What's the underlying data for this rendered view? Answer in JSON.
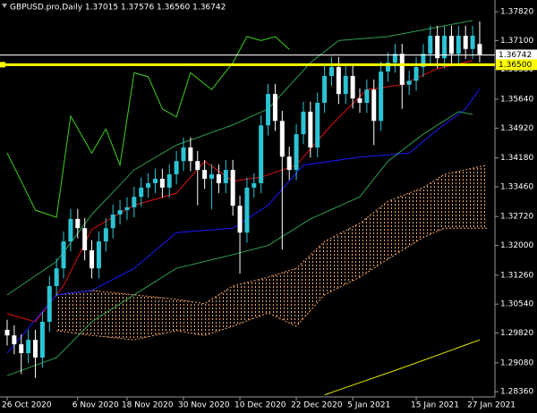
{
  "chart_data": {
    "type": "candlestick",
    "title": "GBPUSD.pro,Daily  1.37015 1.37576 1.36560 1.36742",
    "up_color": "#2bc4d4",
    "down_color": "#ffffff",
    "grid": false,
    "categories": [
      "26 Oct 2020",
      null,
      null,
      null,
      null,
      null,
      null,
      null,
      null,
      null,
      "6 Nov 2020",
      null,
      null,
      null,
      null,
      null,
      null,
      "18 Nov 2020",
      null,
      null,
      null,
      null,
      null,
      null,
      null,
      "30 Nov 2020",
      null,
      null,
      null,
      null,
      null,
      null,
      null,
      "10 Dec 2020",
      null,
      null,
      null,
      null,
      null,
      null,
      null,
      "22 Dec 2020",
      null,
      null,
      null,
      null,
      null,
      null,
      null,
      "5 Jan 2021",
      null,
      null,
      null,
      null,
      null,
      null,
      null,
      null,
      "15 Jan 2021",
      null,
      null,
      null,
      null,
      null,
      null,
      null,
      "27 Jan 2021",
      null
    ],
    "open": [
      1.299,
      1.2976,
      1.2954,
      1.2932,
      1.2965,
      1.2921,
      1.301,
      1.3099,
      1.3143,
      1.321,
      1.3266,
      1.3243,
      1.3188,
      1.3143,
      1.321,
      1.3243,
      1.3277,
      1.3288,
      1.3295,
      1.3321,
      1.3344,
      1.3355,
      1.3366,
      1.3344,
      1.3377,
      1.341,
      1.3444,
      1.341,
      1.3388,
      1.3366,
      1.3377,
      1.3355,
      1.3388,
      1.3299,
      1.3232,
      1.3344,
      1.3355,
      1.3499,
      1.3577,
      1.351,
      1.3421,
      1.3388,
      1.3477,
      1.3533,
      1.3444,
      1.3555,
      1.3622,
      1.3644,
      1.3577,
      1.3622,
      1.3566,
      1.3555,
      1.3588,
      1.351,
      1.3633,
      1.3655,
      1.3677,
      1.36,
      1.361,
      1.3644,
      1.3677,
      1.3722,
      1.3666,
      1.3722,
      1.3677,
      1.3722,
      1.3689,
      1.37015
    ],
    "high": [
      1.3015,
      1.3001,
      1.2979,
      1.299,
      1.299,
      1.3035,
      1.3124,
      1.3168,
      1.3235,
      1.3291,
      1.3291,
      1.3268,
      1.3213,
      1.3235,
      1.3268,
      1.3302,
      1.3313,
      1.332,
      1.3346,
      1.3369,
      1.338,
      1.3391,
      1.3391,
      1.3402,
      1.3435,
      1.3469,
      1.3469,
      1.3435,
      1.3413,
      1.3402,
      1.3402,
      1.3413,
      1.3413,
      1.3324,
      1.3369,
      1.338,
      1.3524,
      1.3602,
      1.3602,
      1.3535,
      1.3446,
      1.3502,
      1.3558,
      1.3558,
      1.358,
      1.3647,
      1.3669,
      1.3669,
      1.3647,
      1.3647,
      1.3591,
      1.3613,
      1.3613,
      1.3658,
      1.368,
      1.3702,
      1.3702,
      1.3635,
      1.3669,
      1.3702,
      1.3747,
      1.3747,
      1.3747,
      1.3747,
      1.3747,
      1.3747,
      1.3747,
      1.37576
    ],
    "low": [
      1.2951,
      1.2929,
      1.288,
      1.2907,
      1.287,
      1.2896,
      1.2985,
      1.3074,
      1.3118,
      1.3185,
      1.3218,
      1.3163,
      1.3118,
      1.3118,
      1.3185,
      1.3218,
      1.3252,
      1.3263,
      1.327,
      1.3296,
      1.3319,
      1.333,
      1.3319,
      1.3319,
      1.3352,
      1.3385,
      1.3385,
      1.33,
      1.3341,
      1.329,
      1.333,
      1.333,
      1.3274,
      1.313,
      1.3207,
      1.3319,
      1.333,
      1.3474,
      1.3485,
      1.319,
      1.3363,
      1.3363,
      1.3452,
      1.3419,
      1.3419,
      1.353,
      1.3597,
      1.3552,
      1.3552,
      1.3541,
      1.353,
      1.353,
      1.345,
      1.3485,
      1.3608,
      1.363,
      1.354,
      1.3575,
      1.3585,
      1.3619,
      1.3652,
      1.3641,
      1.3641,
      1.3652,
      1.3652,
      1.3664,
      1.3664,
      1.3656
    ],
    "close": [
      1.2976,
      1.2954,
      1.2932,
      1.2965,
      1.2921,
      1.301,
      1.3099,
      1.3143,
      1.321,
      1.3266,
      1.3243,
      1.3188,
      1.3143,
      1.321,
      1.3243,
      1.3277,
      1.3288,
      1.3295,
      1.3321,
      1.3344,
      1.3355,
      1.3366,
      1.3344,
      1.3377,
      1.341,
      1.3444,
      1.341,
      1.3388,
      1.3366,
      1.3377,
      1.3355,
      1.3388,
      1.3299,
      1.3232,
      1.3344,
      1.3355,
      1.3499,
      1.3577,
      1.351,
      1.3421,
      1.3388,
      1.3477,
      1.3533,
      1.3444,
      1.3555,
      1.3622,
      1.3644,
      1.3577,
      1.3622,
      1.3566,
      1.3555,
      1.3588,
      1.351,
      1.3633,
      1.3655,
      1.3677,
      1.36,
      1.361,
      1.3644,
      1.3677,
      1.3722,
      1.3666,
      1.3722,
      1.3677,
      1.3722,
      1.3689,
      1.3722,
      1.36742
    ],
    "ylim": [
      1.2823,
      1.3811
    ],
    "yticks": [
      {
        "value": 1.3782,
        "label": "1.37820"
      },
      {
        "value": 1.371,
        "label": "1.37100"
      },
      {
        "value": 1.3638,
        "label": "1.36380"
      },
      {
        "value": 1.3564,
        "label": "1.35640"
      },
      {
        "value": 1.3492,
        "label": "1.34920"
      },
      {
        "value": 1.3418,
        "label": "1.34180"
      },
      {
        "value": 1.3346,
        "label": "1.33460"
      },
      {
        "value": 1.3272,
        "label": "1.32720"
      },
      {
        "value": 1.32,
        "label": "1.32000"
      },
      {
        "value": 1.3126,
        "label": "1.31260"
      },
      {
        "value": 1.3054,
        "label": "1.30540"
      },
      {
        "value": 1.2982,
        "label": "1.29820"
      },
      {
        "value": 1.2908,
        "label": "1.29080"
      },
      {
        "value": 1.2836,
        "label": "1.28360"
      }
    ],
    "lines": [
      {
        "color": "#e01010",
        "x": [
          0,
          4,
          8,
          12,
          18,
          24,
          28,
          32,
          36,
          41,
          46,
          51,
          56,
          61,
          66
        ],
        "values": [
          1.303,
          1.301,
          1.31,
          1.324,
          1.33,
          1.333,
          1.341,
          1.336,
          1.337,
          1.34,
          1.35,
          1.3588,
          1.36,
          1.364,
          1.366
        ]
      },
      {
        "color": "#1a1aff",
        "x": [
          0,
          7,
          12,
          18,
          24,
          32,
          37,
          42,
          50,
          57,
          61,
          65,
          67
        ],
        "values": [
          1.2932,
          1.3077,
          1.3088,
          1.3143,
          1.3232,
          1.3243,
          1.33,
          1.34,
          1.342,
          1.343,
          1.3488,
          1.354,
          1.359
        ]
      },
      {
        "color": "#2e9e4e",
        "x": [
          0,
          7,
          12,
          18,
          24,
          32,
          37,
          43,
          47,
          54,
          60,
          66
        ],
        "values": [
          1.3077,
          1.316,
          1.3277,
          1.3388,
          1.345,
          1.35,
          1.354,
          1.3655,
          1.371,
          1.372,
          1.374,
          1.376
        ]
      },
      {
        "color": "#2e9e4e",
        "x": [
          0,
          7,
          12,
          18,
          24,
          32,
          37,
          43,
          50,
          54,
          59,
          64,
          66
        ],
        "values": [
          1.2876,
          1.2921,
          1.301,
          1.3077,
          1.3143,
          1.3177,
          1.32,
          1.3266,
          1.3321,
          1.341,
          1.3477,
          1.3533,
          1.3526
        ]
      },
      {
        "color": "#3cd21e",
        "x": [
          0,
          2,
          4,
          7,
          9,
          12,
          14,
          16,
          18,
          20,
          22,
          24,
          26,
          29,
          32,
          34,
          36,
          38,
          40
        ],
        "values": [
          1.343,
          1.336,
          1.3288,
          1.327,
          1.3522,
          1.343,
          1.349,
          1.34,
          1.363,
          1.362,
          1.354,
          1.352,
          1.363,
          1.3588,
          1.3655,
          1.372,
          1.371,
          1.372,
          1.3688
        ]
      },
      {
        "color": "#e6e600",
        "x": [
          45,
          56,
          67
        ],
        "values": [
          1.2828,
          1.2895,
          1.2965
        ]
      }
    ],
    "cloud": {
      "color": "#f4a460",
      "x": [
        7,
        12,
        18,
        24,
        28,
        32,
        37,
        41,
        45,
        50,
        54,
        59,
        62,
        68
      ],
      "span_a": [
        1.3077,
        1.3088,
        1.3077,
        1.3066,
        1.3055,
        1.3099,
        1.3121,
        1.3143,
        1.321,
        1.3255,
        1.331,
        1.3344,
        1.3377,
        1.34
      ],
      "span_b": [
        1.2988,
        1.2976,
        1.2965,
        1.2988,
        1.2976,
        1.2999,
        1.3032,
        1.2999,
        1.3077,
        1.3121,
        1.3166,
        1.322,
        1.3243,
        1.3243
      ]
    },
    "hlines": [
      {
        "value": 1.36742,
        "label": "1.36742",
        "color": "#ffffff"
      },
      {
        "value": 1.365,
        "label": "1.36500",
        "color": "#ffff00"
      }
    ]
  }
}
